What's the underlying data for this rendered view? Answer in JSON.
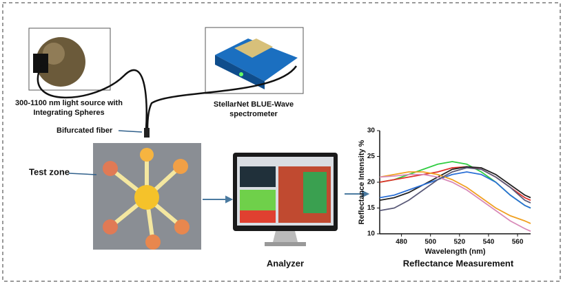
{
  "labels": {
    "light_source": [
      "300-1100 nm light source with",
      "Integrating Spheres"
    ],
    "spectrometer": [
      "StellarNet BLUE-Wave",
      "spectrometer"
    ],
    "fiber": "Bifurcated fiber",
    "test_zone": "Test zone",
    "analyzer": "Analyzer",
    "measurement": "Reflectance Measurement"
  },
  "chart_data": {
    "type": "line",
    "x_label": "Wavelength (nm)",
    "y_label": "Reflectance Intensity %",
    "x": [
      465,
      475,
      485,
      495,
      505,
      515,
      525,
      535,
      545,
      555,
      565,
      569
    ],
    "series": [
      {
        "color": "#2ecc40",
        "values": [
          20,
          20.5,
          21.5,
          22.5,
          23.5,
          24,
          23.5,
          22,
          20,
          17.5,
          15.5,
          15
        ]
      },
      {
        "color": "#e0302a",
        "values": [
          20,
          20.5,
          21,
          21.5,
          22,
          22.8,
          23,
          22.5,
          21,
          19,
          17,
          16.5
        ]
      },
      {
        "color": "#222222",
        "values": [
          16.5,
          17,
          18,
          19.5,
          21,
          22.5,
          23,
          22.8,
          21.5,
          19.5,
          17.5,
          17
        ]
      },
      {
        "color": "#2a6fd6",
        "values": [
          17,
          17.5,
          18.5,
          19.5,
          20.5,
          21.5,
          22,
          21.5,
          20,
          17.5,
          15.5,
          15
        ]
      },
      {
        "color": "#f0a020",
        "values": [
          21,
          21.5,
          22,
          22,
          21.5,
          20.5,
          19,
          17,
          15,
          13.5,
          12.5,
          12
        ]
      },
      {
        "color": "#d88ab8",
        "values": [
          21,
          21.2,
          21.5,
          21.5,
          21,
          20,
          18.5,
          16.5,
          14.5,
          12.5,
          11,
          10.5
        ]
      },
      {
        "color": "#5a5a78",
        "values": [
          14.5,
          15,
          16.5,
          18.5,
          20.5,
          22,
          22.8,
          22.5,
          21,
          19,
          16.5,
          16
        ]
      }
    ],
    "xlim": [
      465,
      569
    ],
    "xticks": [
      480,
      500,
      520,
      540,
      560
    ],
    "ylim": [
      10,
      30
    ],
    "yticks": [
      10,
      15,
      20,
      25,
      30
    ]
  }
}
